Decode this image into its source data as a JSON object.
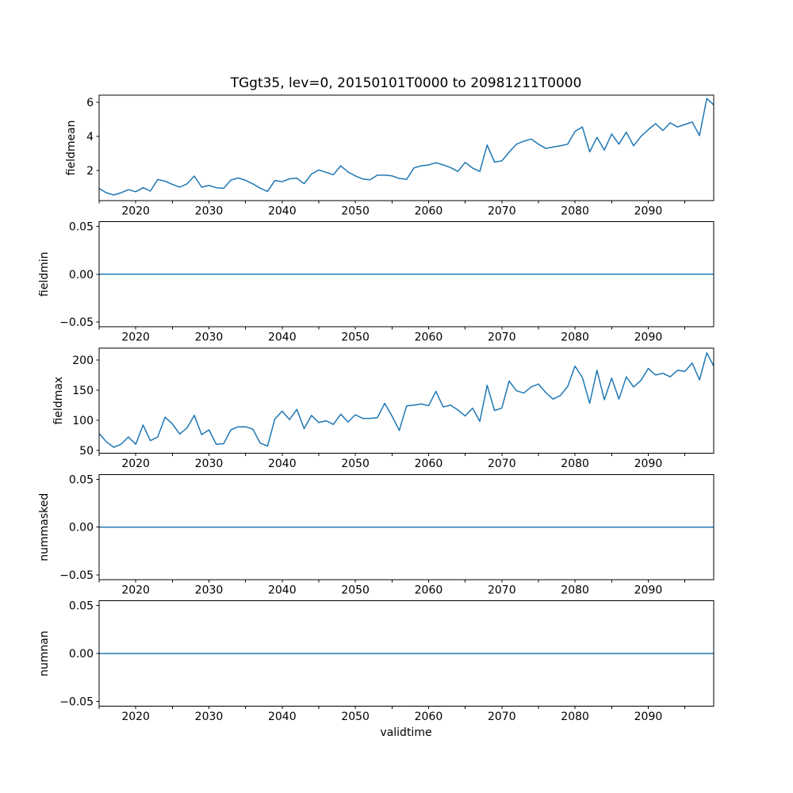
{
  "figure": {
    "title": "TGgt35, lev=0, 20150101T0000 to 20981211T0000",
    "xlabel": "validtime",
    "line_color": "#1f77b4",
    "axis_color": "#000000",
    "background": "#ffffff"
  },
  "xaxis": {
    "lim": [
      2015,
      2098.94
    ],
    "ticks": [
      {
        "v": 2015,
        "label": ""
      },
      {
        "v": 2020,
        "label": "2020"
      },
      {
        "v": 2025,
        "label": ""
      },
      {
        "v": 2030,
        "label": "2030"
      },
      {
        "v": 2035,
        "label": ""
      },
      {
        "v": 2040,
        "label": "2040"
      },
      {
        "v": 2045,
        "label": ""
      },
      {
        "v": 2050,
        "label": "2050"
      },
      {
        "v": 2055,
        "label": ""
      },
      {
        "v": 2060,
        "label": "2060"
      },
      {
        "v": 2065,
        "label": ""
      },
      {
        "v": 2070,
        "label": "2070"
      },
      {
        "v": 2075,
        "label": ""
      },
      {
        "v": 2080,
        "label": "2080"
      },
      {
        "v": 2085,
        "label": ""
      },
      {
        "v": 2090,
        "label": "2090"
      },
      {
        "v": 2095,
        "label": ""
      }
    ]
  },
  "chart_data": [
    {
      "name": "fieldmean",
      "type": "line",
      "ylabel": "fieldmean",
      "ylim": [
        0.25,
        6.42
      ],
      "yticks": [
        {
          "v": 2,
          "label": "2"
        },
        {
          "v": 4,
          "label": "4"
        },
        {
          "v": 6,
          "label": "6"
        }
      ],
      "series": {
        "type": "points",
        "x": [
          2015,
          2016,
          2017,
          2018,
          2019,
          2020,
          2021,
          2022,
          2023,
          2024,
          2025,
          2026,
          2027,
          2028,
          2029,
          2030,
          2031,
          2032,
          2033,
          2034,
          2035,
          2036,
          2037,
          2038,
          2039,
          2040,
          2041,
          2042,
          2043,
          2044,
          2045,
          2046,
          2047,
          2048,
          2049,
          2050,
          2051,
          2052,
          2053,
          2054,
          2055,
          2056,
          2057,
          2058,
          2059,
          2060,
          2061,
          2062,
          2063,
          2064,
          2065,
          2066,
          2067,
          2068,
          2069,
          2070,
          2071,
          2072,
          2073,
          2074,
          2075,
          2076,
          2077,
          2078,
          2079,
          2080,
          2081,
          2082,
          2083,
          2084,
          2085,
          2086,
          2087,
          2088,
          2089,
          2090,
          2091,
          2092,
          2093,
          2094,
          2095,
          2096,
          2097,
          2098,
          2098.94
        ],
        "y": [
          0.95,
          0.7,
          0.57,
          0.7,
          0.88,
          0.76,
          1.0,
          0.8,
          1.48,
          1.38,
          1.2,
          1.03,
          1.22,
          1.68,
          1.03,
          1.13,
          1.0,
          0.96,
          1.45,
          1.57,
          1.43,
          1.22,
          0.97,
          0.78,
          1.42,
          1.35,
          1.52,
          1.56,
          1.23,
          1.8,
          2.04,
          1.9,
          1.76,
          2.28,
          1.92,
          1.69,
          1.51,
          1.46,
          1.73,
          1.73,
          1.69,
          1.54,
          1.49,
          2.16,
          2.28,
          2.33,
          2.46,
          2.33,
          2.18,
          1.95,
          2.48,
          2.15,
          1.95,
          3.5,
          2.5,
          2.57,
          3.08,
          3.55,
          3.72,
          3.85,
          3.55,
          3.3,
          3.38,
          3.45,
          3.55,
          4.3,
          4.55,
          3.1,
          3.95,
          3.2,
          4.15,
          3.55,
          4.25,
          3.45,
          4.0,
          4.4,
          4.75,
          4.35,
          4.8,
          4.55,
          4.7,
          4.85,
          4.05,
          6.23,
          5.85
        ]
      }
    },
    {
      "name": "fieldmin",
      "type": "line",
      "ylabel": "fieldmin",
      "ylim": [
        -0.055,
        0.055
      ],
      "yticks": [
        {
          "v": 0.05,
          "label": "0.05"
        },
        {
          "v": 0,
          "label": "0.00"
        },
        {
          "v": -0.05,
          "label": "−0.05"
        }
      ],
      "series": {
        "type": "constant",
        "value": 0
      }
    },
    {
      "name": "fieldmax",
      "type": "line",
      "ylabel": "fieldmax",
      "ylim": [
        45,
        220
      ],
      "yticks": [
        {
          "v": 50,
          "label": "50"
        },
        {
          "v": 100,
          "label": "100"
        },
        {
          "v": 150,
          "label": "150"
        },
        {
          "v": 200,
          "label": "200"
        }
      ],
      "series": {
        "type": "points",
        "x": [
          2015,
          2016,
          2017,
          2018,
          2019,
          2020,
          2021,
          2022,
          2023,
          2024,
          2025,
          2026,
          2027,
          2028,
          2029,
          2030,
          2031,
          2032,
          2033,
          2034,
          2035,
          2036,
          2037,
          2038,
          2039,
          2040,
          2041,
          2042,
          2043,
          2044,
          2045,
          2046,
          2047,
          2048,
          2049,
          2050,
          2051,
          2052,
          2053,
          2054,
          2055,
          2056,
          2057,
          2058,
          2059,
          2060,
          2061,
          2062,
          2063,
          2064,
          2065,
          2066,
          2067,
          2068,
          2069,
          2070,
          2071,
          2072,
          2073,
          2074,
          2075,
          2076,
          2077,
          2078,
          2079,
          2080,
          2081,
          2082,
          2083,
          2084,
          2085,
          2086,
          2087,
          2088,
          2089,
          2090,
          2091,
          2092,
          2093,
          2094,
          2095,
          2096,
          2097,
          2098,
          2098.94
        ],
        "y": [
          78,
          64,
          55,
          60,
          72,
          60,
          92,
          66,
          72,
          105,
          94,
          77,
          87,
          108,
          76,
          84,
          60,
          61,
          84,
          89,
          89,
          85,
          62,
          57,
          102,
          115,
          101,
          118,
          86,
          108,
          96,
          99,
          93,
          110,
          97,
          109,
          103,
          103,
          104,
          128,
          107,
          83,
          124,
          125,
          127,
          124,
          148,
          122,
          125,
          117,
          107,
          120,
          98,
          158,
          116,
          120,
          165,
          149,
          145,
          155,
          160,
          146,
          135,
          141,
          156,
          190,
          171,
          128,
          183,
          134,
          170,
          135,
          172,
          155,
          166,
          186,
          175,
          178,
          172,
          183,
          181,
          195,
          167,
          212,
          190
        ]
      }
    },
    {
      "name": "nummasked",
      "type": "line",
      "ylabel": "nummasked",
      "ylim": [
        -0.055,
        0.055
      ],
      "yticks": [
        {
          "v": 0.05,
          "label": "0.05"
        },
        {
          "v": 0,
          "label": "0.00"
        },
        {
          "v": -0.05,
          "label": "−0.05"
        }
      ],
      "series": {
        "type": "constant",
        "value": 0
      }
    },
    {
      "name": "numnan",
      "type": "line",
      "ylabel": "numnan",
      "ylim": [
        -0.055,
        0.055
      ],
      "yticks": [
        {
          "v": 0.05,
          "label": "0.05"
        },
        {
          "v": 0,
          "label": "0.00"
        },
        {
          "v": -0.05,
          "label": "−0.05"
        }
      ],
      "series": {
        "type": "constant",
        "value": 0
      }
    }
  ]
}
